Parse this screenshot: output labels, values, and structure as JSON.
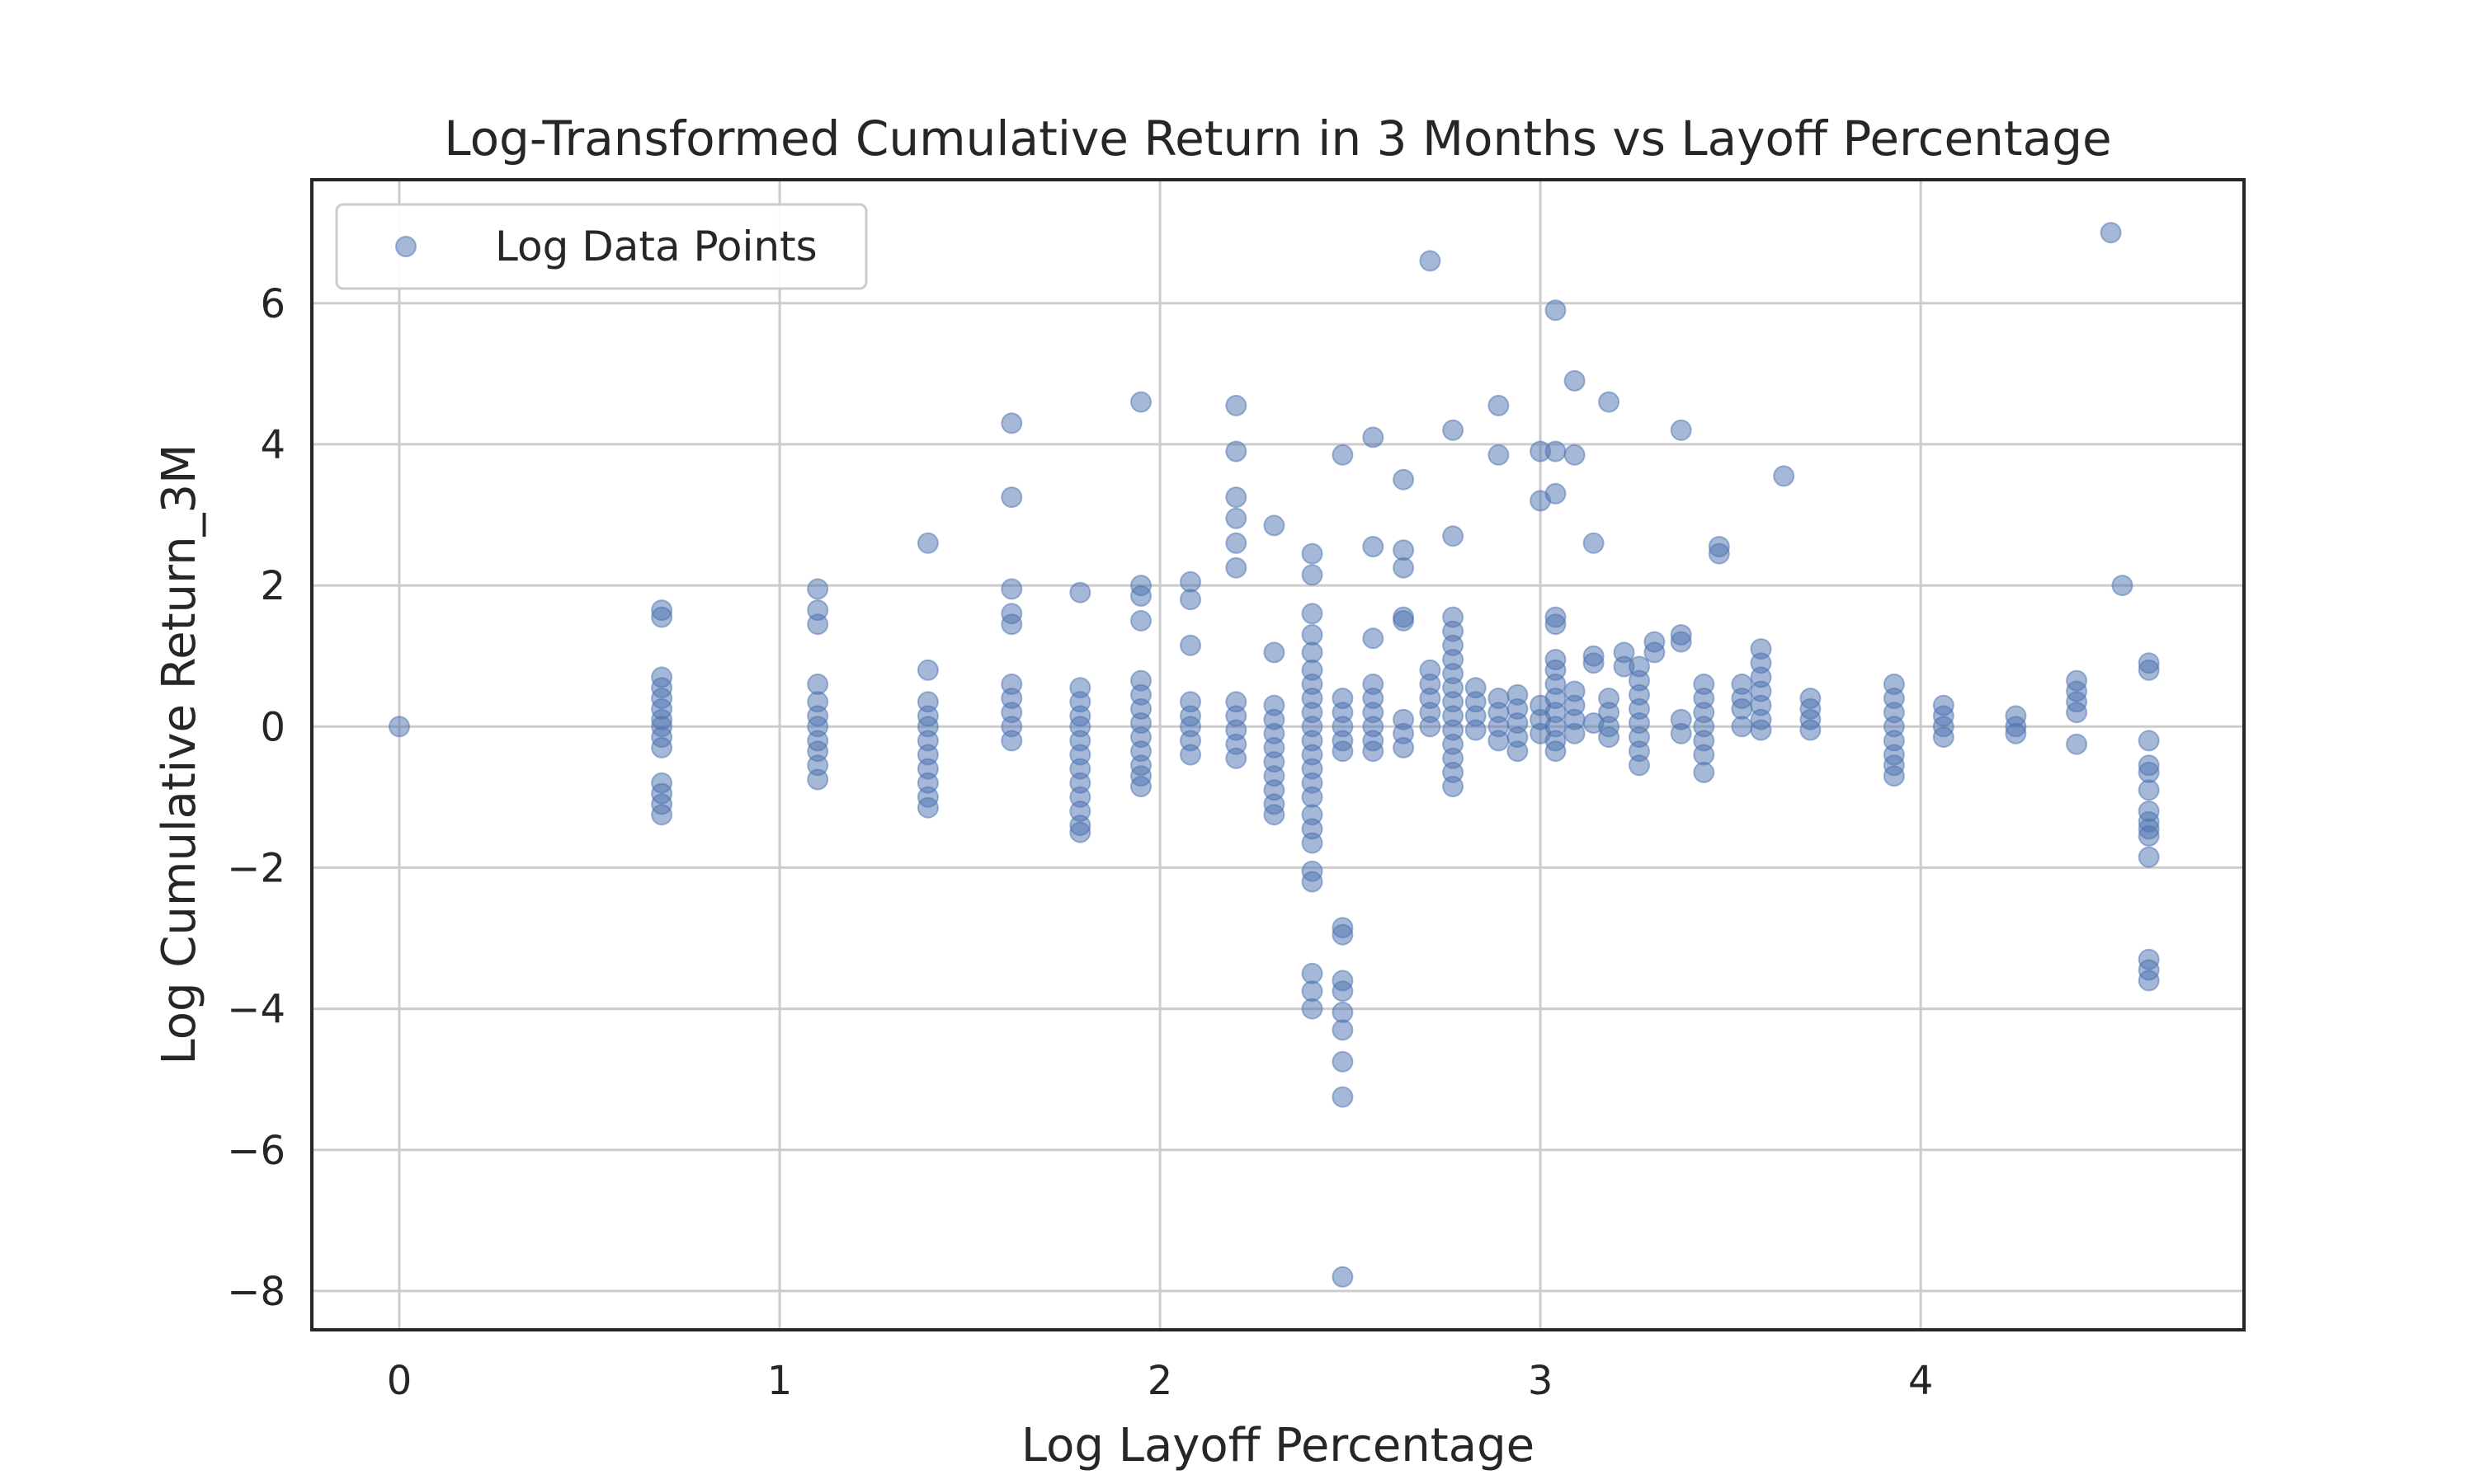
{
  "chart_data": {
    "type": "scatter",
    "title": "Log-Transformed Cumulative Return in 3 Months vs Layoff Percentage",
    "xlabel": "Log Layoff Percentage",
    "ylabel": "Log Cumulative Return_3M",
    "xlim": [
      -0.23,
      4.85
    ],
    "ylim": [
      -8.55,
      7.75
    ],
    "xticks": [
      0,
      1,
      2,
      3,
      4
    ],
    "yticks": [
      -8,
      -6,
      -4,
      -2,
      0,
      2,
      4,
      6
    ],
    "xtick_labels": [
      "0",
      "1",
      "2",
      "3",
      "4"
    ],
    "ytick_labels": [
      "−8",
      "−6",
      "−4",
      "−2",
      "0",
      "2",
      "4",
      "6"
    ],
    "grid": true,
    "legend_position": "top-left",
    "marker_color": "#4c72b0",
    "series": [
      {
        "name": "Log Data Points",
        "points": [
          [
            0.0,
            0.0
          ],
          [
            0.69,
            1.65
          ],
          [
            0.69,
            1.55
          ],
          [
            0.69,
            0.7
          ],
          [
            0.69,
            0.55
          ],
          [
            0.69,
            0.4
          ],
          [
            0.69,
            0.25
          ],
          [
            0.69,
            0.1
          ],
          [
            0.69,
            0.0
          ],
          [
            0.69,
            -0.15
          ],
          [
            0.69,
            -0.3
          ],
          [
            0.69,
            -0.8
          ],
          [
            0.69,
            -0.95
          ],
          [
            0.69,
            -1.1
          ],
          [
            0.69,
            -1.25
          ],
          [
            1.1,
            1.95
          ],
          [
            1.1,
            1.65
          ],
          [
            1.1,
            1.45
          ],
          [
            1.1,
            0.6
          ],
          [
            1.1,
            0.35
          ],
          [
            1.1,
            0.15
          ],
          [
            1.1,
            0.0
          ],
          [
            1.1,
            -0.2
          ],
          [
            1.1,
            -0.35
          ],
          [
            1.1,
            -0.55
          ],
          [
            1.1,
            -0.75
          ],
          [
            1.39,
            2.6
          ],
          [
            1.39,
            0.8
          ],
          [
            1.39,
            0.35
          ],
          [
            1.39,
            0.15
          ],
          [
            1.39,
            0.0
          ],
          [
            1.39,
            -0.2
          ],
          [
            1.39,
            -0.4
          ],
          [
            1.39,
            -0.6
          ],
          [
            1.39,
            -0.8
          ],
          [
            1.39,
            -1.0
          ],
          [
            1.39,
            -1.15
          ],
          [
            1.61,
            4.3
          ],
          [
            1.61,
            3.25
          ],
          [
            1.61,
            1.95
          ],
          [
            1.61,
            1.6
          ],
          [
            1.61,
            1.45
          ],
          [
            1.61,
            0.6
          ],
          [
            1.61,
            0.4
          ],
          [
            1.61,
            0.2
          ],
          [
            1.61,
            0.0
          ],
          [
            1.61,
            -0.2
          ],
          [
            1.79,
            1.9
          ],
          [
            1.79,
            0.55
          ],
          [
            1.79,
            0.35
          ],
          [
            1.79,
            0.15
          ],
          [
            1.79,
            0.0
          ],
          [
            1.79,
            -0.2
          ],
          [
            1.79,
            -0.4
          ],
          [
            1.79,
            -0.6
          ],
          [
            1.79,
            -0.8
          ],
          [
            1.79,
            -1.0
          ],
          [
            1.79,
            -1.2
          ],
          [
            1.79,
            -1.4
          ],
          [
            1.79,
            -1.5
          ],
          [
            1.95,
            4.6
          ],
          [
            1.95,
            2.0
          ],
          [
            1.95,
            1.85
          ],
          [
            1.95,
            1.5
          ],
          [
            1.95,
            0.65
          ],
          [
            1.95,
            0.45
          ],
          [
            1.95,
            0.25
          ],
          [
            1.95,
            0.05
          ],
          [
            1.95,
            -0.15
          ],
          [
            1.95,
            -0.35
          ],
          [
            1.95,
            -0.55
          ],
          [
            1.95,
            -0.7
          ],
          [
            1.95,
            -0.85
          ],
          [
            2.08,
            2.05
          ],
          [
            2.08,
            1.8
          ],
          [
            2.08,
            1.15
          ],
          [
            2.08,
            0.35
          ],
          [
            2.08,
            0.15
          ],
          [
            2.08,
            0.0
          ],
          [
            2.08,
            -0.2
          ],
          [
            2.08,
            -0.4
          ],
          [
            2.2,
            4.55
          ],
          [
            2.2,
            3.9
          ],
          [
            2.2,
            3.25
          ],
          [
            2.2,
            2.95
          ],
          [
            2.2,
            2.6
          ],
          [
            2.2,
            2.25
          ],
          [
            2.2,
            0.35
          ],
          [
            2.2,
            0.15
          ],
          [
            2.2,
            -0.05
          ],
          [
            2.2,
            -0.25
          ],
          [
            2.2,
            -0.45
          ],
          [
            2.3,
            2.85
          ],
          [
            2.3,
            1.05
          ],
          [
            2.3,
            0.3
          ],
          [
            2.3,
            0.1
          ],
          [
            2.3,
            -0.1
          ],
          [
            2.3,
            -0.3
          ],
          [
            2.3,
            -0.5
          ],
          [
            2.3,
            -0.7
          ],
          [
            2.3,
            -0.9
          ],
          [
            2.3,
            -1.1
          ],
          [
            2.3,
            -1.25
          ],
          [
            2.4,
            2.45
          ],
          [
            2.4,
            2.15
          ],
          [
            2.4,
            1.6
          ],
          [
            2.4,
            1.3
          ],
          [
            2.4,
            1.05
          ],
          [
            2.4,
            0.8
          ],
          [
            2.4,
            0.6
          ],
          [
            2.4,
            0.4
          ],
          [
            2.4,
            0.2
          ],
          [
            2.4,
            0.0
          ],
          [
            2.4,
            -0.2
          ],
          [
            2.4,
            -0.4
          ],
          [
            2.4,
            -0.6
          ],
          [
            2.4,
            -0.8
          ],
          [
            2.4,
            -1.0
          ],
          [
            2.4,
            -1.25
          ],
          [
            2.4,
            -1.45
          ],
          [
            2.4,
            -1.65
          ],
          [
            2.4,
            -2.05
          ],
          [
            2.4,
            -2.2
          ],
          [
            2.4,
            -3.5
          ],
          [
            2.4,
            -3.75
          ],
          [
            2.4,
            -4.0
          ],
          [
            2.48,
            3.85
          ],
          [
            2.48,
            0.4
          ],
          [
            2.48,
            0.2
          ],
          [
            2.48,
            0.0
          ],
          [
            2.48,
            -0.2
          ],
          [
            2.48,
            -0.35
          ],
          [
            2.48,
            -2.85
          ],
          [
            2.48,
            -2.95
          ],
          [
            2.48,
            -3.6
          ],
          [
            2.48,
            -3.75
          ],
          [
            2.48,
            -4.05
          ],
          [
            2.48,
            -4.3
          ],
          [
            2.48,
            -4.75
          ],
          [
            2.48,
            -5.25
          ],
          [
            2.48,
            -7.8
          ],
          [
            2.56,
            4.1
          ],
          [
            2.56,
            2.55
          ],
          [
            2.56,
            1.25
          ],
          [
            2.56,
            0.6
          ],
          [
            2.56,
            0.4
          ],
          [
            2.56,
            0.2
          ],
          [
            2.56,
            0.0
          ],
          [
            2.56,
            -0.2
          ],
          [
            2.56,
            -0.35
          ],
          [
            2.64,
            3.5
          ],
          [
            2.64,
            2.5
          ],
          [
            2.64,
            2.25
          ],
          [
            2.64,
            1.55
          ],
          [
            2.64,
            1.5
          ],
          [
            2.64,
            0.1
          ],
          [
            2.64,
            -0.1
          ],
          [
            2.64,
            -0.3
          ],
          [
            2.71,
            6.6
          ],
          [
            2.71,
            0.8
          ],
          [
            2.71,
            0.6
          ],
          [
            2.71,
            0.4
          ],
          [
            2.71,
            0.2
          ],
          [
            2.71,
            0.0
          ],
          [
            2.77,
            4.2
          ],
          [
            2.77,
            2.7
          ],
          [
            2.77,
            1.55
          ],
          [
            2.77,
            1.35
          ],
          [
            2.77,
            1.15
          ],
          [
            2.77,
            0.95
          ],
          [
            2.77,
            0.75
          ],
          [
            2.77,
            0.55
          ],
          [
            2.77,
            0.35
          ],
          [
            2.77,
            0.15
          ],
          [
            2.77,
            -0.05
          ],
          [
            2.77,
            -0.25
          ],
          [
            2.77,
            -0.45
          ],
          [
            2.77,
            -0.65
          ],
          [
            2.77,
            -0.85
          ],
          [
            2.83,
            0.55
          ],
          [
            2.83,
            0.35
          ],
          [
            2.83,
            0.15
          ],
          [
            2.83,
            -0.05
          ],
          [
            2.89,
            4.55
          ],
          [
            2.89,
            3.85
          ],
          [
            2.89,
            0.4
          ],
          [
            2.89,
            0.2
          ],
          [
            2.89,
            0.0
          ],
          [
            2.89,
            -0.2
          ],
          [
            2.94,
            0.45
          ],
          [
            2.94,
            0.25
          ],
          [
            2.94,
            0.05
          ],
          [
            2.94,
            -0.15
          ],
          [
            2.94,
            -0.35
          ],
          [
            3.0,
            3.9
          ],
          [
            3.0,
            3.2
          ],
          [
            3.0,
            0.3
          ],
          [
            3.0,
            0.1
          ],
          [
            3.0,
            -0.1
          ],
          [
            3.04,
            5.9
          ],
          [
            3.04,
            3.9
          ],
          [
            3.04,
            3.3
          ],
          [
            3.04,
            1.55
          ],
          [
            3.04,
            1.45
          ],
          [
            3.04,
            0.95
          ],
          [
            3.04,
            0.8
          ],
          [
            3.04,
            0.6
          ],
          [
            3.04,
            0.4
          ],
          [
            3.04,
            0.2
          ],
          [
            3.04,
            0.0
          ],
          [
            3.04,
            -0.2
          ],
          [
            3.04,
            -0.35
          ],
          [
            3.09,
            4.9
          ],
          [
            3.09,
            3.85
          ],
          [
            3.09,
            0.5
          ],
          [
            3.09,
            0.3
          ],
          [
            3.09,
            0.1
          ],
          [
            3.09,
            -0.1
          ],
          [
            3.14,
            2.6
          ],
          [
            3.14,
            1.0
          ],
          [
            3.14,
            0.9
          ],
          [
            3.14,
            0.05
          ],
          [
            3.18,
            4.6
          ],
          [
            3.18,
            0.4
          ],
          [
            3.18,
            0.2
          ],
          [
            3.18,
            0.0
          ],
          [
            3.18,
            -0.15
          ],
          [
            3.22,
            1.05
          ],
          [
            3.22,
            0.85
          ],
          [
            3.26,
            0.85
          ],
          [
            3.26,
            0.65
          ],
          [
            3.26,
            0.45
          ],
          [
            3.26,
            0.25
          ],
          [
            3.26,
            0.05
          ],
          [
            3.26,
            -0.15
          ],
          [
            3.26,
            -0.35
          ],
          [
            3.26,
            -0.55
          ],
          [
            3.3,
            1.2
          ],
          [
            3.3,
            1.05
          ],
          [
            3.37,
            4.2
          ],
          [
            3.37,
            1.3
          ],
          [
            3.37,
            1.2
          ],
          [
            3.37,
            0.1
          ],
          [
            3.37,
            -0.1
          ],
          [
            3.43,
            0.6
          ],
          [
            3.43,
            0.4
          ],
          [
            3.43,
            0.2
          ],
          [
            3.43,
            0.0
          ],
          [
            3.43,
            -0.2
          ],
          [
            3.43,
            -0.4
          ],
          [
            3.43,
            -0.65
          ],
          [
            3.47,
            2.55
          ],
          [
            3.47,
            2.45
          ],
          [
            3.53,
            0.6
          ],
          [
            3.53,
            0.4
          ],
          [
            3.53,
            0.25
          ],
          [
            3.53,
            0.0
          ],
          [
            3.58,
            1.1
          ],
          [
            3.58,
            0.9
          ],
          [
            3.58,
            0.7
          ],
          [
            3.58,
            0.5
          ],
          [
            3.58,
            0.3
          ],
          [
            3.58,
            0.1
          ],
          [
            3.58,
            -0.05
          ],
          [
            3.64,
            3.55
          ],
          [
            3.71,
            0.4
          ],
          [
            3.71,
            0.25
          ],
          [
            3.71,
            0.1
          ],
          [
            3.71,
            -0.05
          ],
          [
            3.93,
            0.6
          ],
          [
            3.93,
            0.4
          ],
          [
            3.93,
            0.2
          ],
          [
            3.93,
            0.0
          ],
          [
            3.93,
            -0.2
          ],
          [
            3.93,
            -0.4
          ],
          [
            3.93,
            -0.55
          ],
          [
            3.93,
            -0.7
          ],
          [
            4.06,
            0.3
          ],
          [
            4.06,
            0.15
          ],
          [
            4.06,
            0.0
          ],
          [
            4.06,
            -0.15
          ],
          [
            4.25,
            0.15
          ],
          [
            4.25,
            0.0
          ],
          [
            4.25,
            -0.1
          ],
          [
            4.41,
            0.65
          ],
          [
            4.41,
            0.5
          ],
          [
            4.41,
            0.35
          ],
          [
            4.41,
            0.2
          ],
          [
            4.41,
            -0.25
          ],
          [
            4.5,
            7.0
          ],
          [
            4.53,
            2.0
          ],
          [
            4.6,
            0.9
          ],
          [
            4.6,
            0.8
          ],
          [
            4.6,
            -0.2
          ],
          [
            4.6,
            -0.55
          ],
          [
            4.6,
            -0.65
          ],
          [
            4.6,
            -0.9
          ],
          [
            4.6,
            -1.2
          ],
          [
            4.6,
            -1.35
          ],
          [
            4.6,
            -1.45
          ],
          [
            4.6,
            -1.55
          ],
          [
            4.6,
            -1.85
          ],
          [
            4.6,
            -3.3
          ],
          [
            4.6,
            -3.45
          ],
          [
            4.6,
            -3.6
          ]
        ]
      }
    ]
  }
}
